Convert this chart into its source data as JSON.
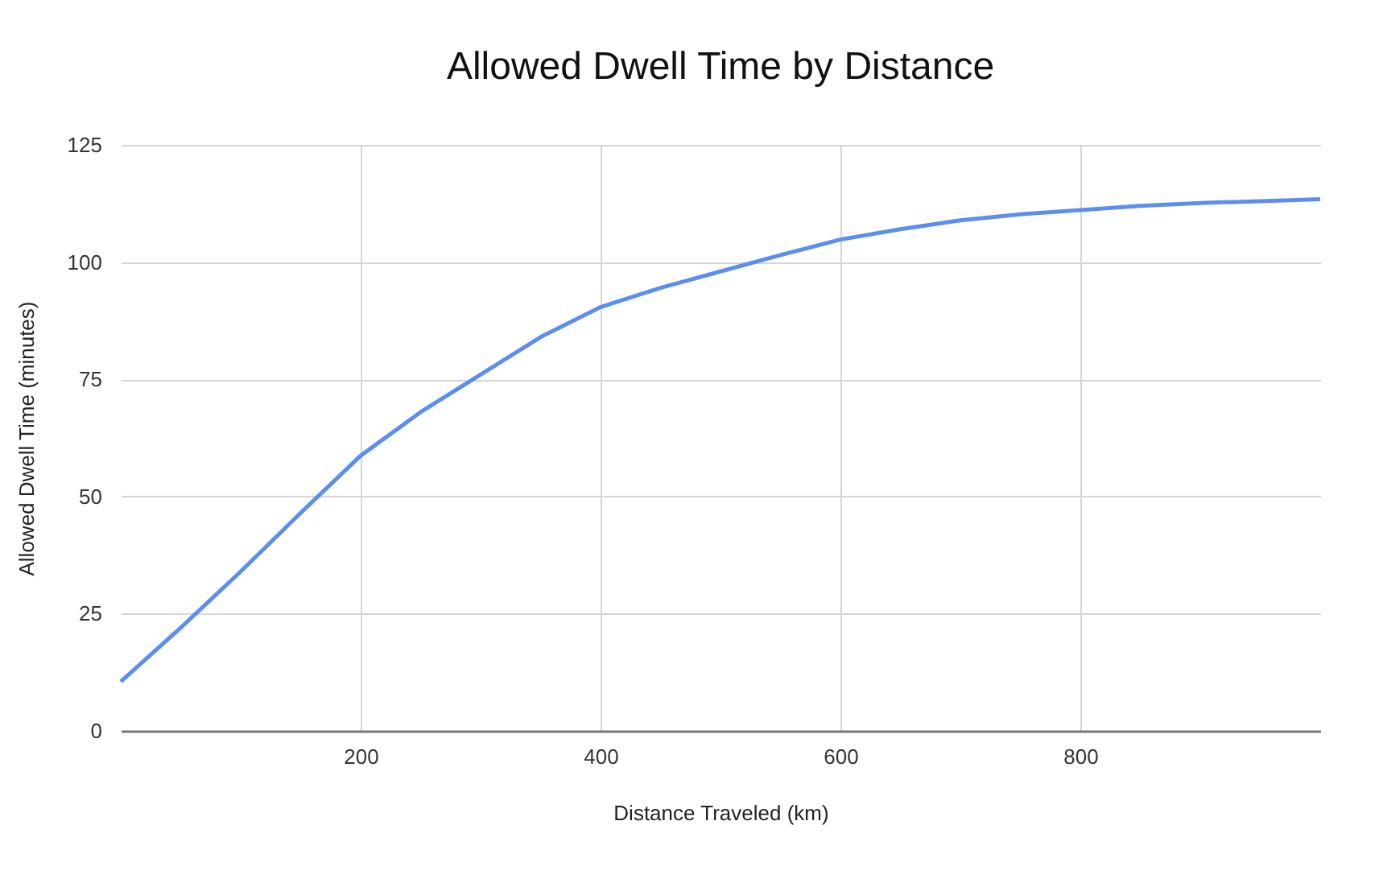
{
  "chart_data": {
    "type": "line",
    "title": "Allowed Dwell Time by Distance",
    "xlabel": "Distance Traveled (km)",
    "ylabel": "Allowed Dwell Time (minutes)",
    "x": [
      0,
      50,
      100,
      150,
      200,
      250,
      300,
      350,
      400,
      450,
      500,
      550,
      600,
      650,
      700,
      750,
      800,
      850,
      900,
      950,
      1000
    ],
    "series": [
      {
        "color": "#5b8ef0",
        "values": [
          10.5,
          22,
          34,
          46.5,
          58.7,
          68,
          76,
          84,
          90.4,
          94.5,
          98,
          101.5,
          104.8,
          107,
          108.9,
          110.2,
          111.1,
          112,
          112.6,
          113,
          113.4
        ]
      }
    ],
    "xlim": [
      0,
      1000
    ],
    "xticks": [
      200,
      400,
      600,
      800
    ],
    "ylim": [
      0,
      125
    ],
    "yticks": [
      0,
      25,
      50,
      75,
      100,
      125
    ],
    "grid": true,
    "marker": "none",
    "line_style": "solid"
  }
}
